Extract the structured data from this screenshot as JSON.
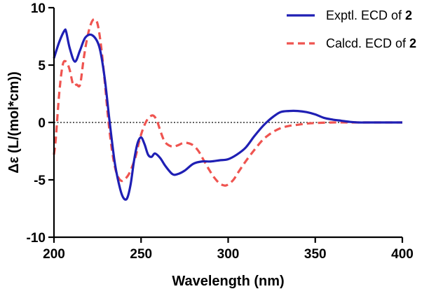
{
  "chart_data": {
    "type": "line",
    "title": "",
    "xlabel": "Wavelength (nm)",
    "ylabel_symbol": "Δε",
    "ylabel_unit": "(L/(mol*cm))",
    "xlim": [
      200,
      400
    ],
    "ylim": [
      -10,
      10
    ],
    "xticks": [
      200,
      250,
      300,
      350,
      400
    ],
    "yticks": [
      -10,
      -5,
      0,
      5,
      10
    ],
    "xtick_labels": [
      "200",
      "250",
      "300",
      "350",
      "400"
    ],
    "ytick_labels": [
      "-10",
      "-5",
      "0",
      "5",
      "10"
    ],
    "zero_line": true,
    "legend_position": "top-right",
    "series": [
      {
        "name": "Exptl. ECD of 2",
        "legend_prefix": "Exptl. ECD of ",
        "legend_bold": "2",
        "color": "#1f1fb4",
        "dash": "solid",
        "x": [
          200,
          203,
          206,
          207,
          209,
          212,
          215,
          218,
          222,
          226,
          229,
          232,
          235,
          238,
          240,
          242,
          244,
          246,
          248,
          250,
          252,
          254,
          256,
          258,
          261,
          264,
          268,
          271,
          275,
          280,
          285,
          290,
          295,
          300,
          305,
          310,
          315,
          320,
          325,
          330,
          335,
          340,
          345,
          350,
          355,
          360,
          365,
          370,
          375,
          380,
          385,
          390,
          395,
          400
        ],
        "values": [
          5.6,
          7.0,
          8.0,
          7.9,
          6.5,
          5.3,
          6.3,
          7.4,
          7.6,
          6.6,
          4.0,
          0.0,
          -3.6,
          -5.8,
          -6.6,
          -6.6,
          -5.4,
          -3.3,
          -1.8,
          -1.3,
          -1.9,
          -2.8,
          -3.0,
          -2.7,
          -3.1,
          -3.8,
          -4.5,
          -4.5,
          -4.2,
          -3.6,
          -3.4,
          -3.4,
          -3.3,
          -3.2,
          -2.8,
          -2.2,
          -1.2,
          -0.3,
          0.4,
          0.9,
          1.0,
          1.0,
          0.9,
          0.7,
          0.4,
          0.25,
          0.15,
          0.05,
          0.0,
          0.0,
          0.0,
          0.0,
          0.0,
          0.0
        ]
      },
      {
        "name": "Calcd. ECD of 2",
        "legend_prefix": "Calcd. ECD of ",
        "legend_bold": "2",
        "color": "#ef5450",
        "dash": "dashed",
        "x": [
          200,
          201,
          203,
          205,
          207,
          209,
          211,
          213,
          215,
          217,
          219,
          221,
          223,
          225,
          227,
          229,
          231,
          233,
          235,
          237,
          239,
          241,
          243,
          245,
          247,
          249,
          251,
          253,
          255,
          257,
          259,
          261,
          263,
          265,
          268,
          271,
          274,
          277,
          280,
          283,
          286,
          289,
          292,
          295,
          298,
          300,
          303,
          306,
          310,
          315,
          320,
          325,
          330,
          335,
          340,
          345,
          350,
          360,
          370,
          380,
          390,
          400
        ],
        "values": [
          -2.8,
          -1.5,
          2.5,
          5.0,
          5.3,
          4.6,
          3.3,
          3.3,
          3.3,
          5.5,
          7.3,
          8.5,
          9.0,
          8.6,
          6.7,
          3.8,
          0.5,
          -2.1,
          -3.9,
          -4.8,
          -5.1,
          -4.9,
          -4.5,
          -3.8,
          -2.9,
          -1.6,
          -0.6,
          0.1,
          0.5,
          0.6,
          0.2,
          -0.7,
          -1.5,
          -1.9,
          -2.1,
          -2.0,
          -1.8,
          -1.8,
          -2.0,
          -2.5,
          -3.3,
          -4.1,
          -4.8,
          -5.3,
          -5.5,
          -5.4,
          -5.0,
          -4.3,
          -3.4,
          -2.4,
          -1.5,
          -0.9,
          -0.5,
          -0.3,
          -0.2,
          -0.1,
          -0.05,
          0.0,
          0.0,
          0.0,
          0.0,
          0.0
        ]
      }
    ]
  }
}
